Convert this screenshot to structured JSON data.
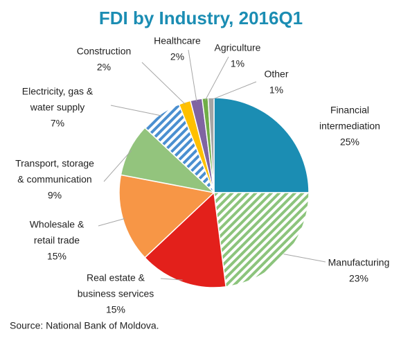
{
  "chart_data": {
    "type": "pie",
    "title": "FDI by Industry, 2016Q1",
    "categories": [
      [
        "Financial",
        "intermediation"
      ],
      [
        "Manufacturing"
      ],
      [
        "Real estate &",
        "business services"
      ],
      [
        "Wholesale  &",
        "retail trade"
      ],
      [
        "Transport, storage",
        "& communication"
      ],
      [
        "Electricity, gas &",
        "water supply"
      ],
      [
        "Construction"
      ],
      [
        "Healthcare"
      ],
      [
        "Agriculture"
      ],
      [
        "Other"
      ]
    ],
    "values": [
      25,
      23,
      15,
      15,
      9,
      7,
      2,
      2,
      1,
      1
    ],
    "value_labels": [
      "25%",
      "23%",
      "15%",
      "15%",
      "9%",
      "7%",
      "2%",
      "2%",
      "1%",
      "1%"
    ],
    "colors": [
      "#1b8db3",
      "#8cc47c",
      "#e3201b",
      "#f79646",
      "#93c47d",
      "#4a8fd0",
      "#ffc000",
      "#8064a2",
      "#70ad47",
      "#a5a5a5"
    ],
    "hatched": [
      false,
      true,
      false,
      false,
      false,
      true,
      false,
      false,
      false,
      false
    ],
    "source": "Source: National Bank of Moldova."
  }
}
